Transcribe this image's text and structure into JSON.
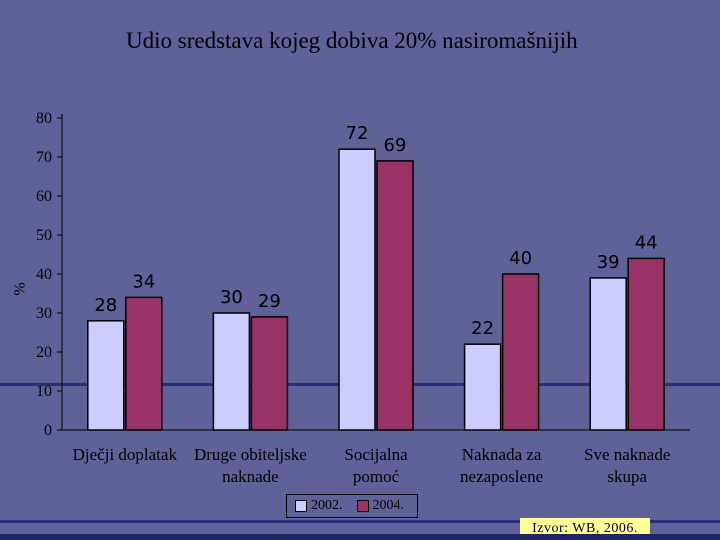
{
  "chart_data": {
    "type": "bar",
    "title": "Udio sredstava kojeg dobiva 20% nasiromašnijih",
    "ylabel": "%",
    "ylim": [
      0,
      80
    ],
    "yticks": [
      "0",
      "10",
      "20",
      "30",
      "40",
      "50",
      "60",
      "70",
      "80"
    ],
    "categories": [
      [
        "Dječji doplatak"
      ],
      [
        "Druge obiteljske",
        "naknade"
      ],
      [
        "Socijalna",
        "pomoć"
      ],
      [
        "Naknada za",
        "nezaposlene"
      ],
      [
        "Sve naknade",
        "skupa"
      ]
    ],
    "series": [
      {
        "name": "2002.",
        "color": "#CCCCFF",
        "values": [
          28,
          30,
          72,
          22,
          39
        ]
      },
      {
        "name": "2004.",
        "color": "#993366",
        "values": [
          34,
          29,
          69,
          40,
          44
        ]
      }
    ],
    "grid": false,
    "legend": "bottom"
  },
  "source": "Izvor: WB, 2006."
}
